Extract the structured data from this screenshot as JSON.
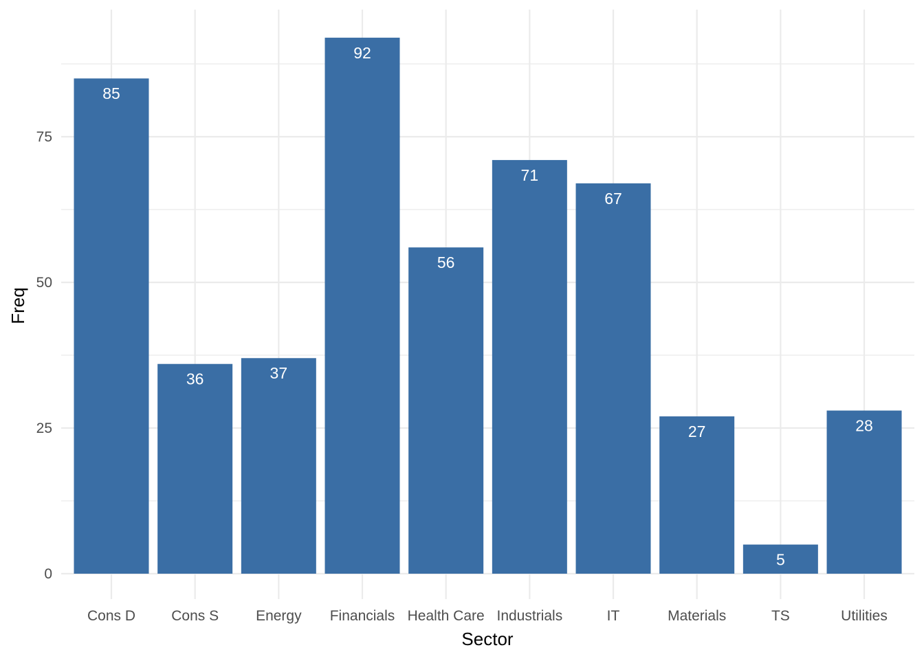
{
  "chart_data": {
    "type": "bar",
    "title": "",
    "xlabel": "Sector",
    "ylabel": "Freq",
    "categories": [
      "Cons D",
      "Cons S",
      "Energy",
      "Financials",
      "Health Care",
      "Industrials",
      "IT",
      "Materials",
      "TS",
      "Utilities"
    ],
    "values": [
      85,
      36,
      37,
      92,
      56,
      71,
      67,
      27,
      5,
      28
    ],
    "ylim": [
      0,
      96
    ],
    "yticks": [
      0,
      25,
      50,
      75
    ],
    "grid": true,
    "legend": "none",
    "bar_color": "#3a6ea5",
    "label_color": "#ffffff",
    "grid_color": "#ebebeb",
    "text_color": "#4d4d4d",
    "title_color": "#000000"
  }
}
